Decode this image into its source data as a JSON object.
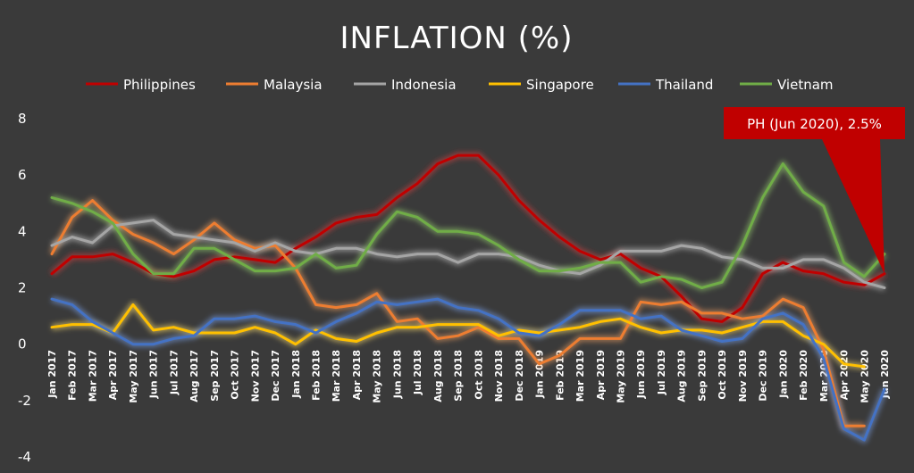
{
  "chart_data": {
    "type": "line",
    "title": "INFLATION (%)",
    "xlabel": "",
    "ylabel": "",
    "ylim": [
      -4,
      8
    ],
    "yticks": [
      8,
      6,
      4,
      2,
      0,
      -2,
      -4
    ],
    "grid": false,
    "legend_position": "top",
    "categories": [
      "Jan 2017",
      "Feb 2017",
      "Mar 2017",
      "Apr 2017",
      "May 2017",
      "Jun 2017",
      "Jul 2017",
      "Aug 2017",
      "Sep 2017",
      "Oct 2017",
      "Nov 2017",
      "Dec 2017",
      "Jan 2018",
      "Feb 2018",
      "Mar 2018",
      "Apr 2018",
      "May 2018",
      "Jun 2018",
      "Jul 2018",
      "Aug 2018",
      "Sep 2018",
      "Oct 2018",
      "Nov 2018",
      "Dec 2018",
      "Jan 2019",
      "Feb 2019",
      "Mar 2019",
      "Apr 2019",
      "May 2019",
      "Jun 2019",
      "Jul 2019",
      "Aug 2019",
      "Sep 2019",
      "Oct 2019",
      "Nov 2019",
      "Dec 2019",
      "Jan 2020",
      "Feb 2020",
      "Mar 2020",
      "Apr 2020",
      "May 2020",
      "Jun 2020"
    ],
    "series": [
      {
        "name": "Philippines",
        "color": "#c00000",
        "glow": "#e04040",
        "values": [
          2.5,
          3.1,
          3.1,
          3.2,
          2.9,
          2.5,
          2.4,
          2.6,
          3.0,
          3.1,
          3.0,
          2.9,
          3.4,
          3.8,
          4.3,
          4.5,
          4.6,
          5.2,
          5.7,
          6.4,
          6.7,
          6.7,
          6.0,
          5.1,
          4.4,
          3.8,
          3.3,
          3.0,
          3.2,
          2.7,
          2.4,
          1.7,
          0.9,
          0.8,
          1.3,
          2.5,
          2.9,
          2.6,
          2.5,
          2.2,
          2.1,
          2.5
        ]
      },
      {
        "name": "Malaysia",
        "color": "#ed7d31",
        "glow": "#f0a060",
        "values": [
          3.2,
          4.5,
          5.1,
          4.4,
          3.9,
          3.6,
          3.2,
          3.7,
          4.3,
          3.7,
          3.4,
          3.5,
          2.7,
          1.4,
          1.3,
          1.4,
          1.8,
          0.8,
          0.9,
          0.2,
          0.3,
          0.6,
          0.2,
          0.2,
          -0.7,
          -0.4,
          0.2,
          0.2,
          0.2,
          1.5,
          1.4,
          1.5,
          1.1,
          1.1,
          0.9,
          1.0,
          1.6,
          1.3,
          -0.2,
          -2.9,
          -2.9,
          null
        ]
      },
      {
        "name": "Indonesia",
        "color": "#a5a5a5",
        "glow": "#c8c8c8",
        "values": [
          3.5,
          3.8,
          3.6,
          4.2,
          4.3,
          4.4,
          3.9,
          3.8,
          3.7,
          3.6,
          3.3,
          3.6,
          3.3,
          3.2,
          3.4,
          3.4,
          3.2,
          3.1,
          3.2,
          3.2,
          2.9,
          3.2,
          3.2,
          3.1,
          2.8,
          2.6,
          2.5,
          2.8,
          3.3,
          3.3,
          3.3,
          3.5,
          3.4,
          3.1,
          3.0,
          2.7,
          2.7,
          3.0,
          3.0,
          2.7,
          2.2,
          2.0
        ]
      },
      {
        "name": "Singapore",
        "color": "#ffc000",
        "glow": "#ffe070",
        "values": [
          0.6,
          0.7,
          0.7,
          0.4,
          1.4,
          0.5,
          0.6,
          0.4,
          0.4,
          0.4,
          0.6,
          0.4,
          0.0,
          0.5,
          0.2,
          0.1,
          0.4,
          0.6,
          0.6,
          0.7,
          0.7,
          0.7,
          0.3,
          0.5,
          0.4,
          0.5,
          0.6,
          0.8,
          0.9,
          0.6,
          0.4,
          0.5,
          0.5,
          0.4,
          0.6,
          0.8,
          0.8,
          0.3,
          0.0,
          -0.7,
          -0.8,
          null
        ]
      },
      {
        "name": "Thailand",
        "color": "#4472c4",
        "glow": "#7aa0e8",
        "values": [
          1.6,
          1.4,
          0.8,
          0.4,
          0.0,
          0.0,
          0.2,
          0.3,
          0.9,
          0.9,
          1.0,
          0.8,
          0.7,
          0.4,
          0.8,
          1.1,
          1.5,
          1.4,
          1.5,
          1.6,
          1.3,
          1.2,
          0.9,
          0.4,
          0.3,
          0.7,
          1.2,
          1.2,
          1.2,
          0.9,
          1.0,
          0.5,
          0.3,
          0.1,
          0.2,
          0.9,
          1.1,
          0.7,
          -0.5,
          -3.0,
          -3.4,
          -1.6
        ]
      },
      {
        "name": "Vietnam",
        "color": "#70ad47",
        "glow": "#98d070",
        "values": [
          5.2,
          5.0,
          4.7,
          4.3,
          3.2,
          2.5,
          2.5,
          3.4,
          3.4,
          3.0,
          2.6,
          2.6,
          2.7,
          3.2,
          2.7,
          2.8,
          3.9,
          4.7,
          4.5,
          4.0,
          4.0,
          3.9,
          3.5,
          3.0,
          2.6,
          2.6,
          2.7,
          2.9,
          2.9,
          2.2,
          2.4,
          2.3,
          2.0,
          2.2,
          3.5,
          5.2,
          6.4,
          5.4,
          4.9,
          2.9,
          2.4,
          3.2
        ]
      }
    ],
    "annotations": [
      {
        "text": "PH (Jun 2020), 2.5%",
        "category": "Jun 2020",
        "value": 2.5,
        "background": "#c00000"
      }
    ]
  }
}
